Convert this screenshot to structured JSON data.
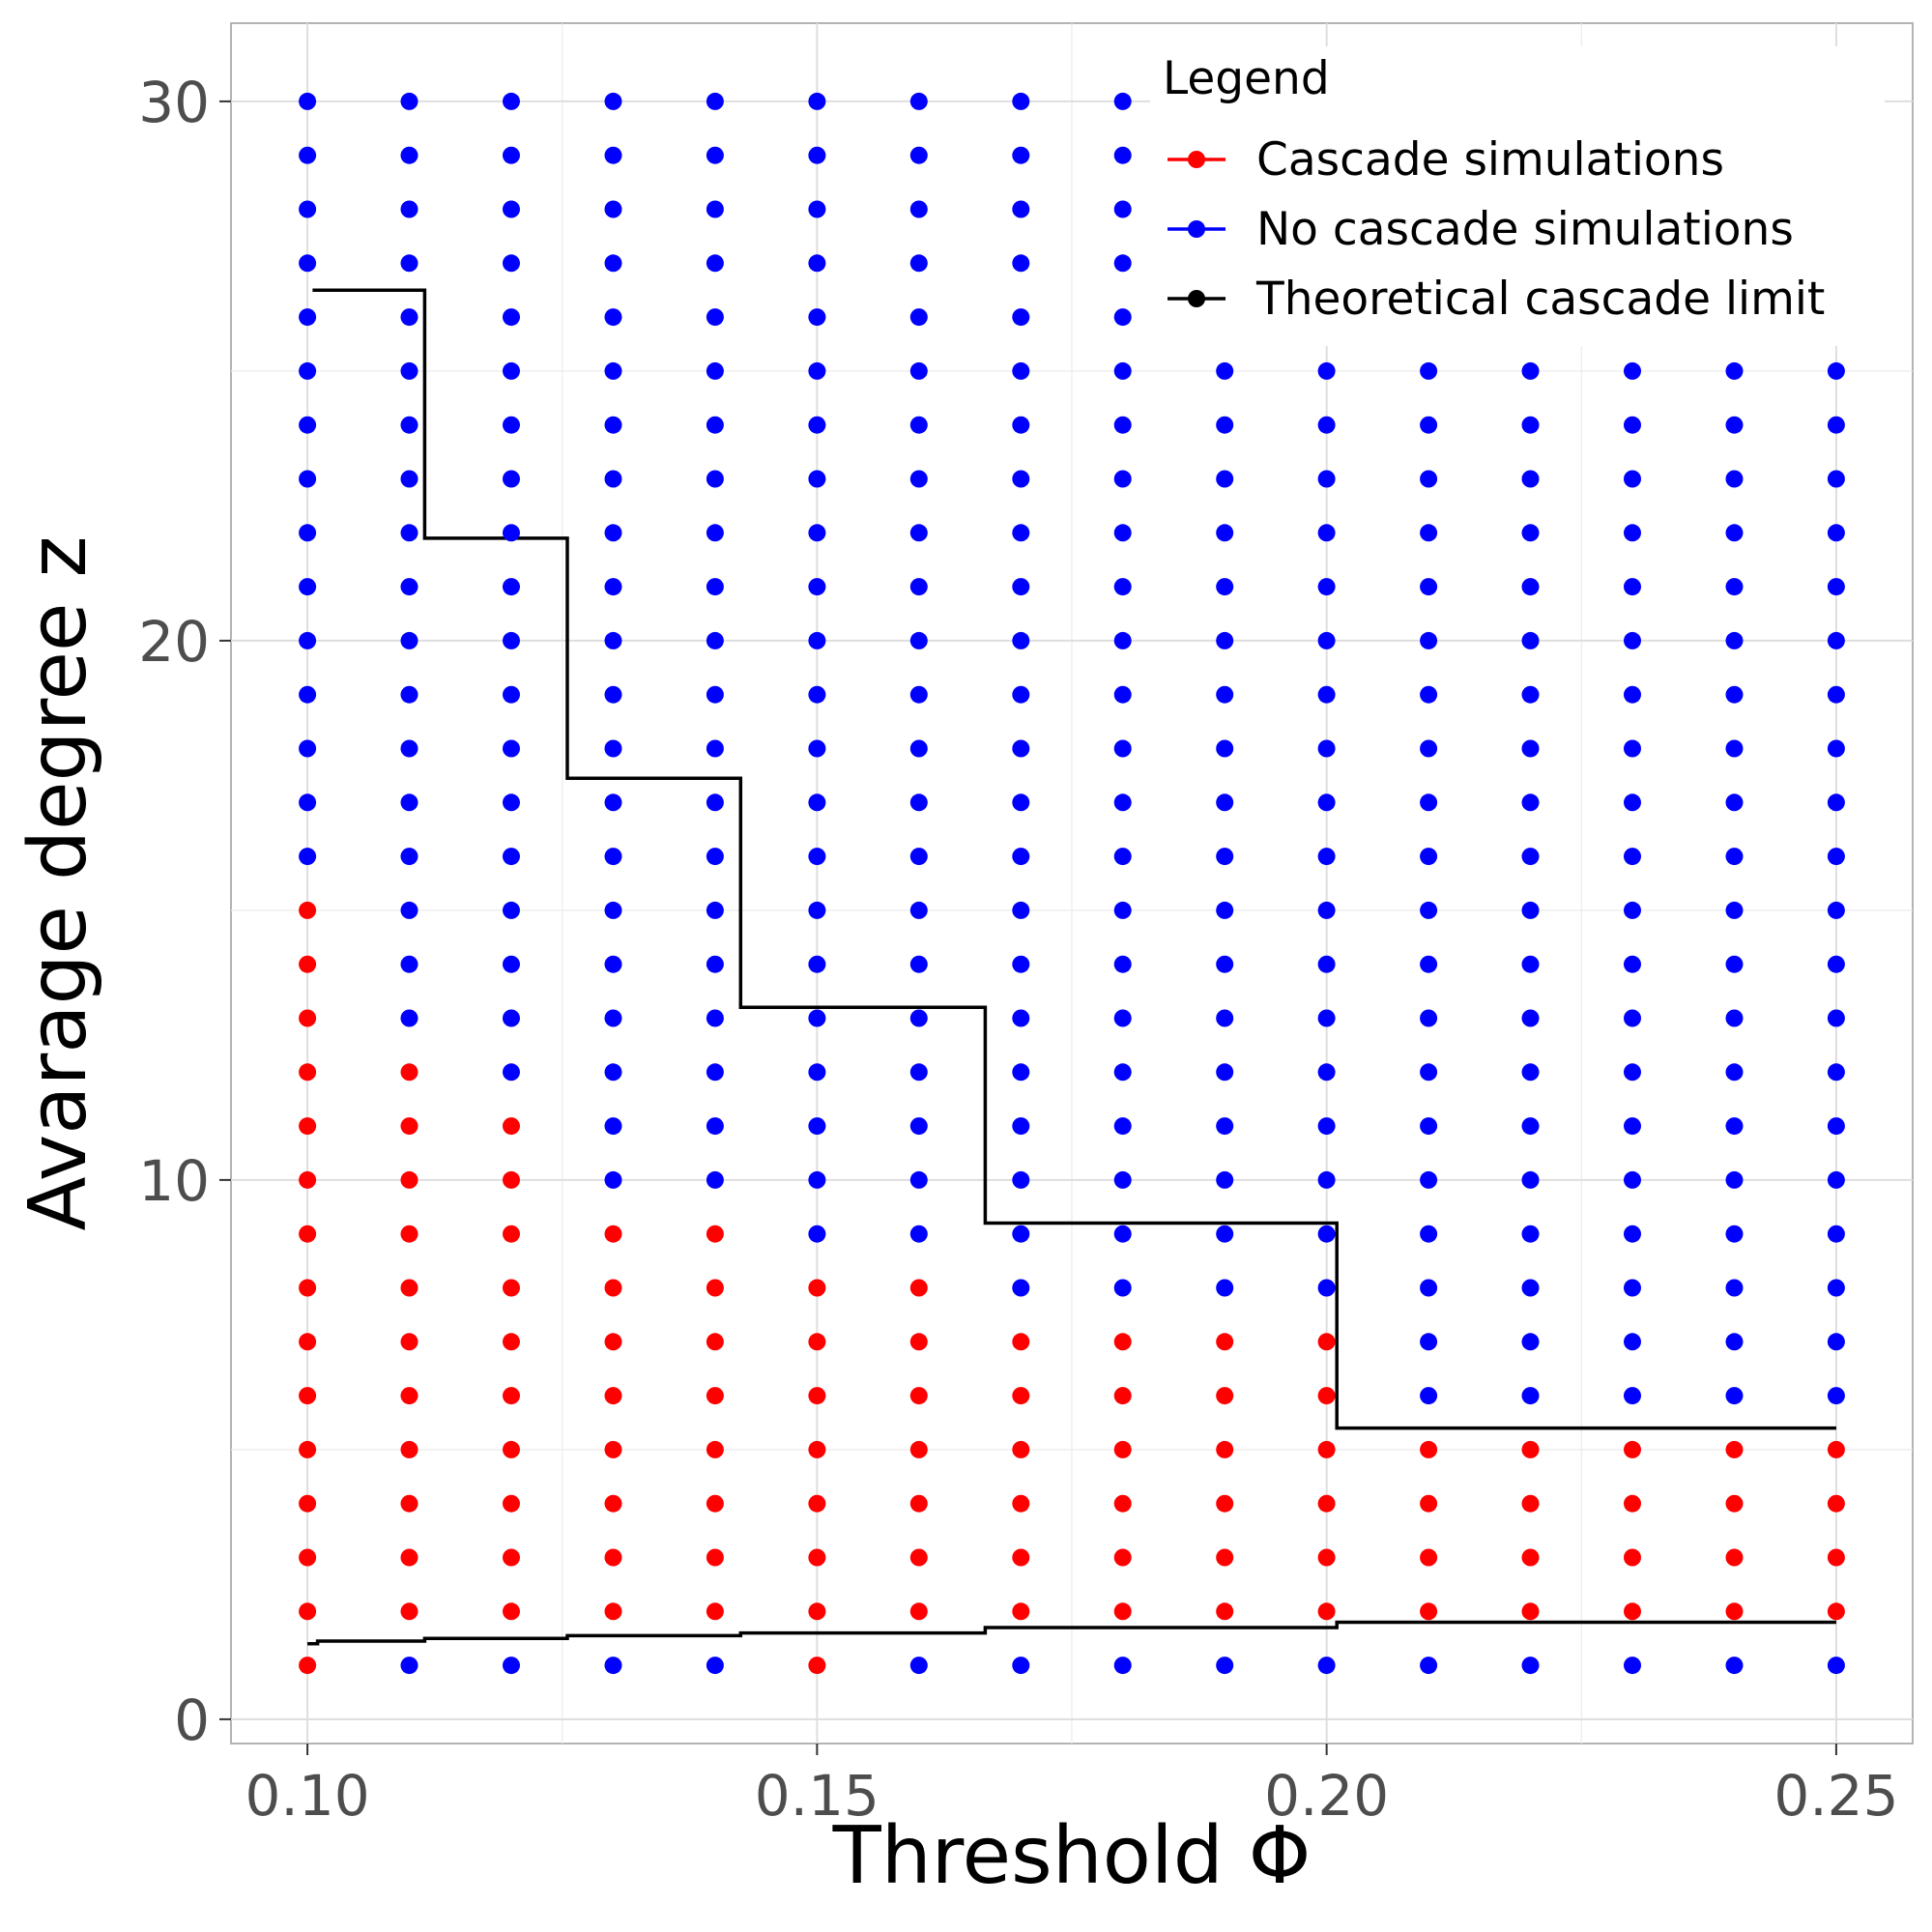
{
  "chart_data": {
    "type": "scatter",
    "xlabel": "Threshold Φ",
    "ylabel": "Avarage degree z",
    "xlim": [
      0.0925,
      0.2575
    ],
    "ylim": [
      -0.45,
      31.45
    ],
    "x_ticks": [
      0.1,
      0.15,
      0.2,
      0.25
    ],
    "x_tick_labels": [
      "0.10",
      "0.15",
      "0.20",
      "0.25"
    ],
    "y_ticks": [
      0,
      10,
      20,
      30
    ],
    "y_tick_labels": [
      "0",
      "10",
      "20",
      "30"
    ],
    "grid": true,
    "legend": {
      "title": "Legend",
      "placement": "top-right",
      "entries": [
        {
          "label": "Cascade simulations",
          "color": "#ff0000"
        },
        {
          "label": "No cascade simulations",
          "color": "#0000ff"
        },
        {
          "label": "Theoretical cascade limit",
          "color": "#000000"
        }
      ]
    },
    "points": {
      "x_values": [
        0.1,
        0.11,
        0.12,
        0.13,
        0.14,
        0.15,
        0.16,
        0.17,
        0.18,
        0.19,
        0.2,
        0.21,
        0.22,
        0.23,
        0.24,
        0.25
      ],
      "z_values": [
        1,
        2,
        3,
        4,
        5,
        6,
        7,
        8,
        9,
        10,
        11,
        12,
        13,
        14,
        15,
        16,
        17,
        18,
        19,
        20,
        21,
        22,
        23,
        24,
        25,
        26,
        27,
        28,
        29,
        30
      ],
      "cascade_z_ranges": [
        [
          1,
          15
        ],
        [
          2,
          12
        ],
        [
          2,
          11
        ],
        [
          2,
          9
        ],
        [
          2,
          9
        ],
        [
          1,
          8
        ],
        [
          2,
          8
        ],
        [
          2,
          7
        ],
        [
          2,
          7
        ],
        [
          2,
          7
        ],
        [
          2,
          7
        ],
        [
          2,
          5
        ],
        [
          2,
          5
        ],
        [
          2,
          5
        ],
        [
          2,
          5
        ],
        [
          2,
          5
        ]
      ],
      "max_z_per_x": [
        30,
        30,
        30,
        30,
        30,
        30,
        30,
        30,
        30,
        25,
        25,
        25,
        25,
        25,
        25,
        25
      ]
    },
    "series": [
      {
        "name": "Cascade simulations",
        "color": "#ff0000",
        "marker": "point"
      },
      {
        "name": "No cascade simulations",
        "color": "#0000ff",
        "marker": "point"
      },
      {
        "name": "Theoretical cascade limit",
        "color": "#000000",
        "marker": "step-line",
        "upper_boundary": [
          {
            "x": 0.1005,
            "y": 26.5
          },
          {
            "x": 0.1115,
            "y": 26.5
          },
          {
            "x": 0.1115,
            "y": 21.9
          },
          {
            "x": 0.1255,
            "y": 21.9
          },
          {
            "x": 0.1255,
            "y": 17.45
          },
          {
            "x": 0.1425,
            "y": 17.45
          },
          {
            "x": 0.1425,
            "y": 13.2
          },
          {
            "x": 0.1665,
            "y": 13.2
          },
          {
            "x": 0.1665,
            "y": 9.2
          },
          {
            "x": 0.201,
            "y": 9.2
          },
          {
            "x": 0.201,
            "y": 5.4
          },
          {
            "x": 0.25,
            "y": 5.4
          }
        ],
        "lower_boundary": [
          {
            "x": 0.1,
            "y": 1.4
          },
          {
            "x": 0.101,
            "y": 1.4
          },
          {
            "x": 0.101,
            "y": 1.45
          },
          {
            "x": 0.1115,
            "y": 1.45
          },
          {
            "x": 0.1115,
            "y": 1.5
          },
          {
            "x": 0.1255,
            "y": 1.5
          },
          {
            "x": 0.1255,
            "y": 1.55
          },
          {
            "x": 0.1425,
            "y": 1.55
          },
          {
            "x": 0.1425,
            "y": 1.6
          },
          {
            "x": 0.1665,
            "y": 1.6
          },
          {
            "x": 0.1665,
            "y": 1.7
          },
          {
            "x": 0.201,
            "y": 1.7
          },
          {
            "x": 0.201,
            "y": 1.8
          },
          {
            "x": 0.25,
            "y": 1.8
          }
        ]
      }
    ]
  }
}
